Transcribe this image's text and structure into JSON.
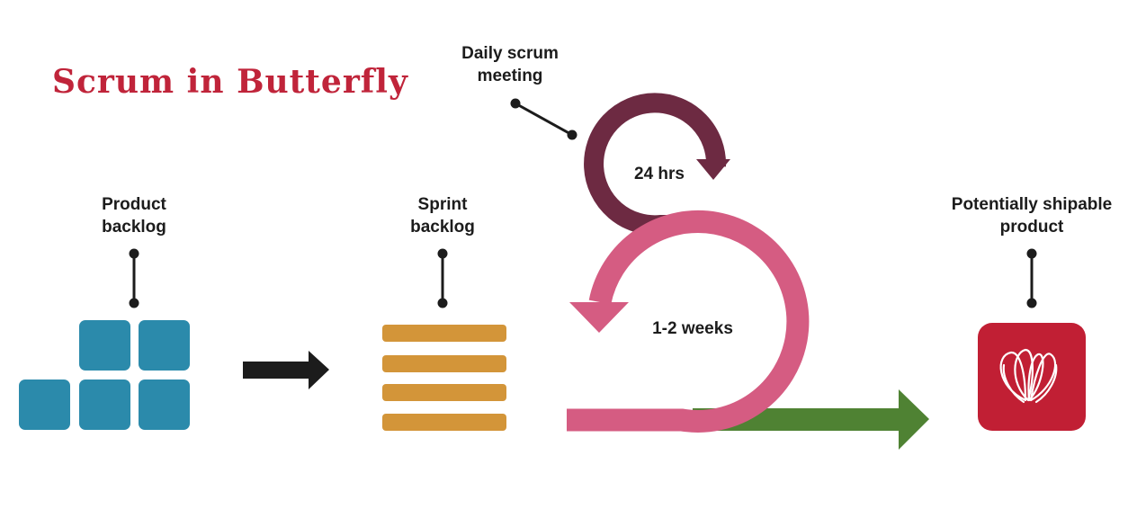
{
  "title": "Scrum in Butterfly",
  "labels": {
    "product_backlog": [
      "Product",
      "backlog"
    ],
    "sprint_backlog": [
      "Sprint",
      "backlog"
    ],
    "daily_scrum": [
      "Daily scrum",
      "meeting"
    ],
    "daily_cycle": "24 hrs",
    "sprint_cycle": "1-2 weeks",
    "shippable_product": [
      "Potentially shipable",
      "product"
    ]
  },
  "colors": {
    "title": "#c0243a",
    "product_backlog": "#2b8aab",
    "sprint_backlog": "#d39539",
    "daily_loop": "#6d2a42",
    "sprint_loop": "#d55c82",
    "output_arrow": "#4f8233",
    "flow_arrow": "#1c1c1c",
    "product_tile": "#c11f34"
  },
  "icons": {
    "product_logo": "butterfly-logo-icon"
  }
}
